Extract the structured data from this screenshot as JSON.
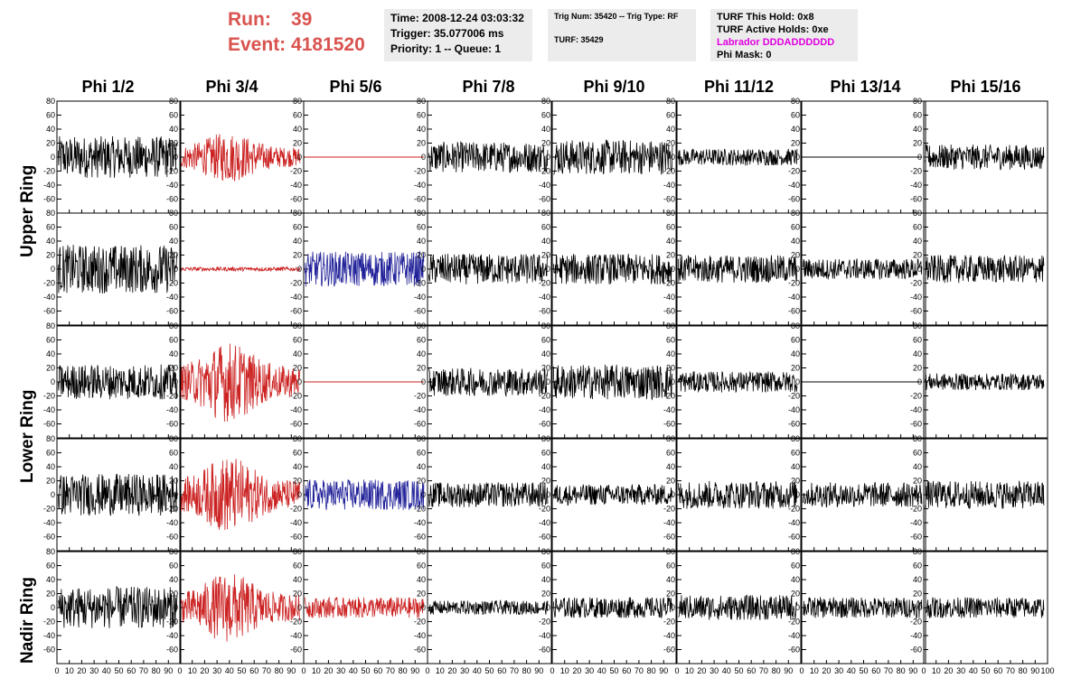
{
  "header": {
    "run_label": "Run:",
    "run_value": "39",
    "event_label": "Event:",
    "event_value": "4181520"
  },
  "info_panels": {
    "time": "Time: 2008-12-24 03:03:32",
    "trigger": "Trigger: 35.077006 ms",
    "priority": "Priority: 1 -- Queue: 1",
    "trig_num": "Trig Num: 35420 -- Trig Type: RF",
    "turf": "TURF: 35429",
    "turf_this_hold": "TURF This Hold: 0x8",
    "turf_active_holds": "TURF Active Holds: 0xe",
    "labrador": "Labrador DDDADDDDDD",
    "phi_mask": "Phi Mask: 0"
  },
  "columns": [
    "Phi 1/2",
    "Phi 3/4",
    "Phi 5/6",
    "Phi 7/8",
    "Phi 9/10",
    "Phi 11/12",
    "Phi 13/14",
    "Phi 15/16"
  ],
  "ring_groups": [
    "Upper Ring",
    "Lower Ring",
    "Nadir Ring"
  ],
  "colors": {
    "title_red": "#d9534f",
    "trace_black": "#000000",
    "trace_red": "#cc2222",
    "trace_blue": "#22229a",
    "labrador_magenta": "#e000e0",
    "info_bg": "#ececec"
  },
  "chart_data": {
    "type": "line",
    "layout": "5 rows x 8 columns of waveform panels",
    "xlim": [
      0,
      100
    ],
    "ylim": [
      -80,
      80
    ],
    "x_ticks": [
      0,
      10,
      20,
      30,
      40,
      50,
      60,
      70,
      80,
      90,
      100
    ],
    "x_tick_labels": [
      "0",
      "10",
      "20",
      "30",
      "40",
      "50",
      "60",
      "70",
      "80",
      "90",
      "100"
    ],
    "y_ticks": [
      -60,
      -40,
      -20,
      0,
      20,
      40,
      60,
      80
    ],
    "y_tick_labels": [
      "-60",
      "-40",
      "-20",
      "0",
      "20",
      "40",
      "60",
      "80"
    ],
    "panel_amplitude": [
      [
        30,
        25,
        0,
        22,
        25,
        12,
        0,
        18
      ],
      [
        35,
        3,
        25,
        22,
        22,
        20,
        15,
        20
      ],
      [
        25,
        40,
        0,
        20,
        25,
        15,
        0,
        12
      ],
      [
        30,
        38,
        22,
        18,
        15,
        20,
        18,
        20
      ],
      [
        30,
        35,
        15,
        10,
        15,
        18,
        15,
        15
      ]
    ],
    "panel_color": [
      [
        "black",
        "red",
        "red",
        "black",
        "black",
        "black",
        "black",
        "black"
      ],
      [
        "black",
        "red",
        "blue",
        "black",
        "black",
        "black",
        "black",
        "black"
      ],
      [
        "black",
        "red",
        "red",
        "black",
        "black",
        "black",
        "black",
        "black"
      ],
      [
        "black",
        "red",
        "blue",
        "black",
        "black",
        "black",
        "black",
        "black"
      ],
      [
        "black",
        "red",
        "red",
        "black",
        "black",
        "black",
        "black",
        "black"
      ]
    ]
  }
}
